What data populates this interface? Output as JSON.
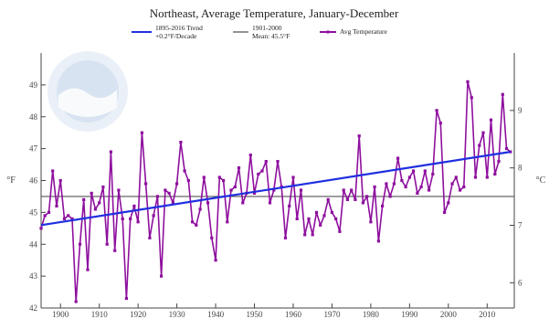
{
  "chart_data": {
    "type": "line",
    "title": "Northeast, Average Temperature, January-December",
    "xlabel": "",
    "ylabel": "°F",
    "y2label": "°C",
    "xlim": [
      1895,
      2017
    ],
    "ylim": [
      42,
      50
    ],
    "y2lim": [
      5.56,
      10
    ],
    "x_ticks": [
      1900,
      1910,
      1920,
      1930,
      1940,
      1950,
      1960,
      1970,
      1980,
      1990,
      2000,
      2010
    ],
    "y_ticks": [
      42,
      43,
      44,
      45,
      46,
      47,
      48,
      49
    ],
    "y2_ticks": [
      6,
      7,
      8,
      9
    ],
    "grid": false,
    "legend_position": "top",
    "legend": [
      {
        "line1": "1895-2016 Trend",
        "line2": "+0.2°F/Decade",
        "color": "#1f2fe0"
      },
      {
        "line1": "1901-2000",
        "line2": "Mean: 45.5°F",
        "color": "#555555"
      },
      {
        "line1": "Avg Temperature",
        "line2": "",
        "color": "#8e0f9e"
      }
    ],
    "x": [
      1895,
      1896,
      1897,
      1898,
      1899,
      1900,
      1901,
      1902,
      1903,
      1904,
      1905,
      1906,
      1907,
      1908,
      1909,
      1910,
      1911,
      1912,
      1913,
      1914,
      1915,
      1916,
      1917,
      1918,
      1919,
      1920,
      1921,
      1922,
      1923,
      1924,
      1925,
      1926,
      1927,
      1928,
      1929,
      1930,
      1931,
      1932,
      1933,
      1934,
      1935,
      1936,
      1937,
      1938,
      1939,
      1940,
      1941,
      1942,
      1943,
      1944,
      1945,
      1946,
      1947,
      1948,
      1949,
      1950,
      1951,
      1952,
      1953,
      1954,
      1955,
      1956,
      1957,
      1958,
      1959,
      1960,
      1961,
      1962,
      1963,
      1964,
      1965,
      1966,
      1967,
      1968,
      1969,
      1970,
      1971,
      1972,
      1973,
      1974,
      1975,
      1976,
      1977,
      1978,
      1979,
      1980,
      1981,
      1982,
      1983,
      1984,
      1985,
      1986,
      1987,
      1988,
      1989,
      1990,
      1991,
      1992,
      1993,
      1994,
      1995,
      1996,
      1997,
      1998,
      1999,
      2000,
      2001,
      2002,
      2003,
      2004,
      2005,
      2006,
      2007,
      2008,
      2009,
      2010,
      2011,
      2012,
      2013,
      2014,
      2015,
      2016
    ],
    "series": [
      {
        "name": "Avg Temperature",
        "color": "#8e0f9e",
        "values": [
          44.5,
          44.9,
          45.0,
          46.3,
          45.2,
          46.0,
          44.8,
          44.9,
          44.8,
          42.2,
          44.0,
          45.4,
          43.2,
          45.6,
          45.1,
          45.3,
          45.8,
          44.0,
          46.9,
          43.8,
          45.7,
          44.8,
          42.3,
          44.8,
          45.2,
          44.7,
          47.5,
          45.9,
          44.2,
          44.9,
          45.5,
          43.0,
          45.7,
          45.6,
          45.3,
          45.9,
          47.2,
          46.3,
          46.0,
          44.7,
          44.6,
          45.1,
          46.1,
          45.3,
          44.2,
          43.5,
          46.1,
          46.0,
          44.7,
          45.7,
          45.8,
          46.4,
          45.3,
          45.6,
          46.8,
          45.6,
          46.2,
          46.3,
          46.6,
          45.3,
          45.7,
          46.6,
          45.8,
          44.2,
          45.2,
          46.1,
          44.8,
          45.7,
          44.3,
          44.8,
          44.3,
          45.0,
          44.6,
          44.9,
          45.4,
          45.0,
          44.8,
          44.4,
          45.7,
          45.4,
          45.7,
          45.4,
          47.4,
          45.3,
          45.5,
          44.7,
          45.8,
          44.1,
          45.2,
          45.9,
          45.5,
          45.9,
          46.7,
          46.0,
          45.8,
          46.1,
          46.3,
          45.6,
          45.8,
          46.3,
          45.7,
          46.2,
          48.2,
          47.8,
          45.0,
          45.3,
          45.9,
          46.1,
          45.7,
          45.8,
          49.1,
          48.6,
          46.1,
          47.1,
          47.5,
          46.1,
          47.9,
          46.2,
          46.6,
          48.7,
          47.0,
          46.9
        ]
      }
    ],
    "trend": {
      "name": "1895-2016 Trend",
      "rate": "+0.2°F/Decade",
      "start": [
        1895,
        44.6
      ],
      "end": [
        2016,
        46.9
      ],
      "color": "#1f2fe0"
    },
    "mean": {
      "name": "1901-2000",
      "label": "Mean: 45.5°F",
      "value": 45.5,
      "color": "#555555"
    }
  }
}
